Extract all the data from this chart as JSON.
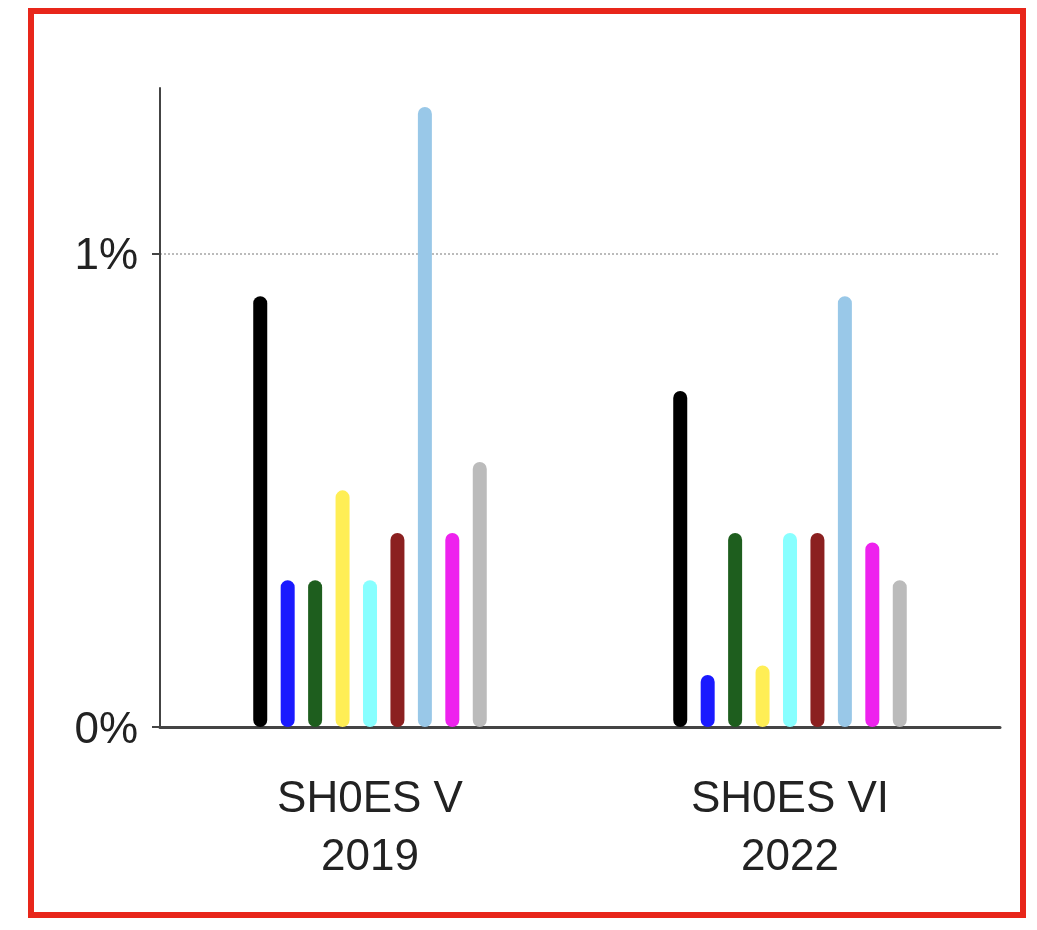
{
  "chart_data": {
    "type": "bar",
    "categories": [
      "SH0ES V\n2019",
      "SH0ES VI\n2022"
    ],
    "series": [
      {
        "color": "#000000",
        "values": [
          0.91,
          0.71
        ]
      },
      {
        "color": "#1a1aff",
        "values": [
          0.31,
          0.11
        ]
      },
      {
        "color": "#1e5e1e",
        "values": [
          0.31,
          0.41
        ]
      },
      {
        "color": "#ffee55",
        "values": [
          0.5,
          0.13
        ]
      },
      {
        "color": "#88ffff",
        "values": [
          0.31,
          0.41
        ]
      },
      {
        "color": "#8b2020",
        "values": [
          0.41,
          0.41
        ]
      },
      {
        "color": "#99c8e8",
        "values": [
          1.31,
          0.91
        ]
      },
      {
        "color": "#ee22ee",
        "values": [
          0.41,
          0.39
        ]
      },
      {
        "color": "#bbbbbb",
        "values": [
          0.56,
          0.31
        ]
      }
    ],
    "ylim": [
      0,
      1.35
    ],
    "yticks": [
      {
        "value": 0,
        "label": "0%"
      },
      {
        "value": 1,
        "label": "1%"
      }
    ],
    "grid": "y"
  }
}
